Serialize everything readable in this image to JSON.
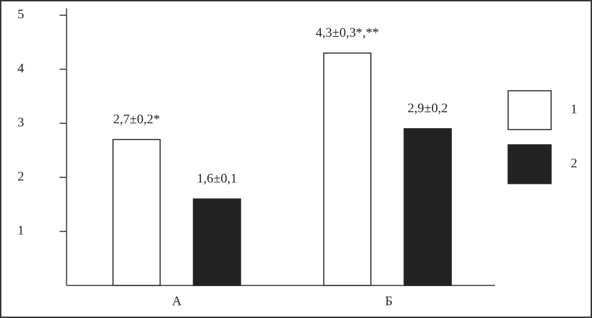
{
  "chart_data": {
    "type": "bar",
    "categories": [
      "А",
      "Б"
    ],
    "series": [
      {
        "name": "1",
        "color": "#ffffff",
        "values": [
          2.7,
          4.3
        ],
        "value_labels": [
          "2,7±0,2*",
          "4,3±0,3*,**"
        ]
      },
      {
        "name": "2",
        "color": "#222222",
        "values": [
          1.6,
          2.9
        ],
        "value_labels": [
          "1,6±0,1",
          "2,9±0,2"
        ]
      }
    ],
    "ylim": [
      0,
      5
    ],
    "yticks": [
      1,
      2,
      3,
      4,
      5
    ],
    "legend": "right"
  }
}
